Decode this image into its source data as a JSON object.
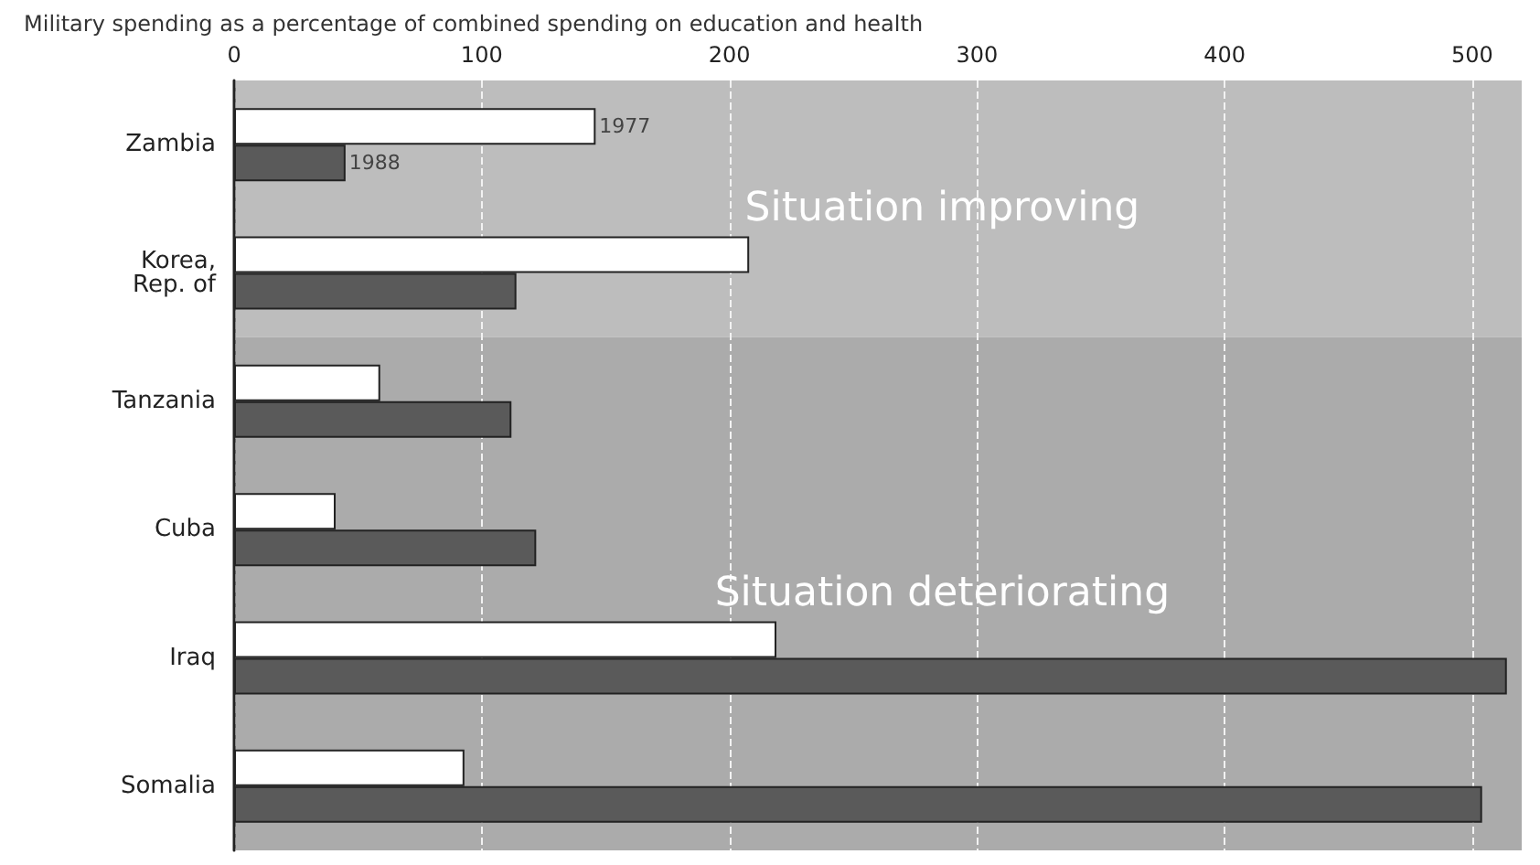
{
  "chart_data": {
    "type": "bar",
    "orientation": "horizontal",
    "title": "Military spending as a percentage of combined spending on education and health",
    "categories": [
      "Zambia",
      "Korea,\nRep. of",
      "Tanzania",
      "Cuba",
      "Iraq",
      "Somalia"
    ],
    "series": [
      {
        "name": "1977",
        "color": "#ffffff",
        "values": [
          146,
          208,
          59,
          41,
          219,
          93
        ]
      },
      {
        "name": "1988",
        "color": "#5a5a5a",
        "values": [
          45,
          114,
          112,
          122,
          514,
          504
        ]
      }
    ],
    "xlim": [
      0,
      520
    ],
    "xticks": [
      0,
      100,
      200,
      300,
      400,
      500
    ],
    "grid": "x",
    "legend": false,
    "bands": [
      {
        "axis": "y",
        "from": "Zambia",
        "to": "Korea,\nRep. of",
        "label": "Situation improving",
        "color": "#bdbdbd"
      },
      {
        "axis": "y",
        "from": "Tanzania",
        "to": "Somalia",
        "label": "Situation deteriorating",
        "color": "#ababab"
      }
    ]
  }
}
